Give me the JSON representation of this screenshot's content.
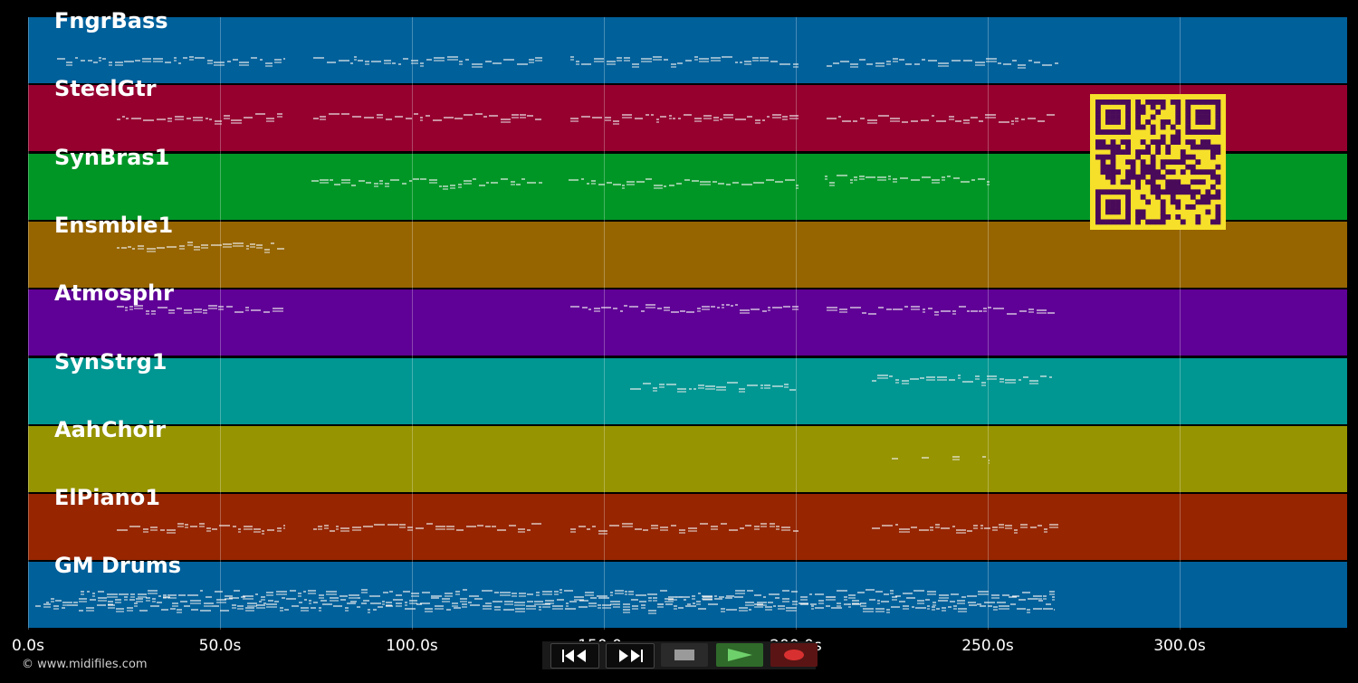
{
  "tracks": [
    {
      "name": "FngrBass",
      "color": "#00609a"
    },
    {
      "name": "SteelGtr",
      "color": "#95002f"
    },
    {
      "name": "SynBras1",
      "color": "#009626"
    },
    {
      "name": "Ensmble1",
      "color": "#966500"
    },
    {
      "name": "Atmosphr",
      "color": "#5f0096"
    },
    {
      "name": "SynStrg1",
      "color": "#009692"
    },
    {
      "name": "AahChoir",
      "color": "#969400"
    },
    {
      "name": "ElPiano1",
      "color": "#962500"
    },
    {
      "name": "GM Drums",
      "color": "#00609a"
    }
  ],
  "axis": {
    "ticks": [
      "0.0s",
      "50.0s",
      "100.0s",
      "150.0s",
      "200.0s",
      "250.0s",
      "300.0s"
    ]
  },
  "copyright": "© www.midifiles.com",
  "controls": {
    "rewind_icon": "rewind-icon",
    "forward_icon": "fast-forward-icon",
    "stop_icon": "stop-icon",
    "play_icon": "play-icon",
    "record_icon": "record-icon"
  },
  "colors": {
    "background": "#000000",
    "qr_fg": "#4a0a5a",
    "qr_bg": "#f7e02a",
    "play_bg": "#2f6a2a",
    "record_bg": "#5a1414"
  }
}
